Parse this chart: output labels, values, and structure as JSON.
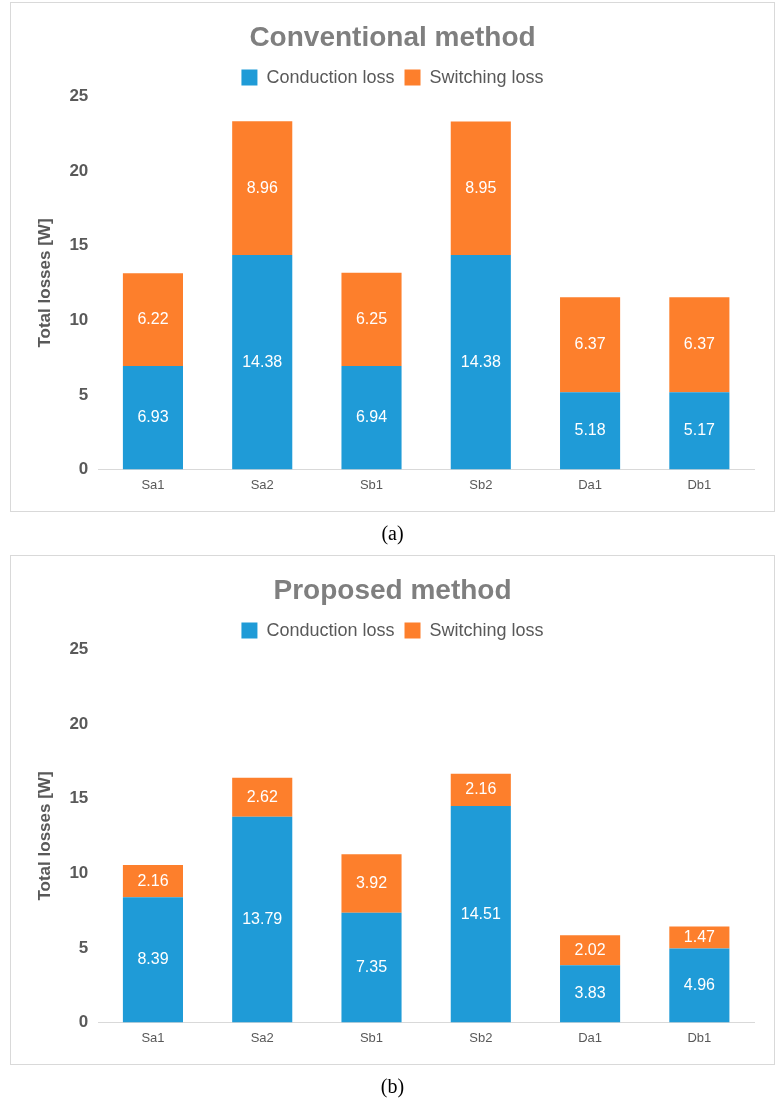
{
  "chart_data": [
    {
      "type": "bar",
      "title": "Conventional method",
      "ylabel": "Total losses [W]",
      "categories": [
        "Sa1",
        "Sa2",
        "Sb1",
        "Sb2",
        "Da1",
        "Db1"
      ],
      "stacked": true,
      "series": [
        {
          "name": "Conduction loss",
          "color": "#1f9bd7",
          "values": [
            6.93,
            14.38,
            6.94,
            14.38,
            5.18,
            5.17
          ]
        },
        {
          "name": "Switching loss",
          "color": "#fd7f2c",
          "values": [
            6.22,
            8.96,
            6.25,
            8.95,
            6.37,
            6.37
          ]
        }
      ],
      "ylim": [
        0,
        25
      ],
      "yticks": [
        0,
        5,
        10,
        15,
        20,
        25
      ],
      "grid": false,
      "legend": "top",
      "data_labels": true,
      "annotations": [
        "(a)"
      ]
    },
    {
      "type": "bar",
      "title": "Proposed method",
      "ylabel": "Total losses [W]",
      "categories": [
        "Sa1",
        "Sa2",
        "Sb1",
        "Sb2",
        "Da1",
        "Db1"
      ],
      "stacked": true,
      "series": [
        {
          "name": "Conduction loss",
          "color": "#1f9bd7",
          "values": [
            8.39,
            13.79,
            7.35,
            14.51,
            3.83,
            4.96
          ]
        },
        {
          "name": "Switching loss",
          "color": "#fd7f2c",
          "values": [
            2.16,
            2.62,
            3.92,
            2.16,
            2.02,
            1.47
          ]
        }
      ],
      "ylim": [
        0,
        25
      ],
      "yticks": [
        0,
        5,
        10,
        15,
        20,
        25
      ],
      "grid": false,
      "legend": "top",
      "data_labels": true,
      "annotations": [
        "(b)"
      ]
    }
  ]
}
